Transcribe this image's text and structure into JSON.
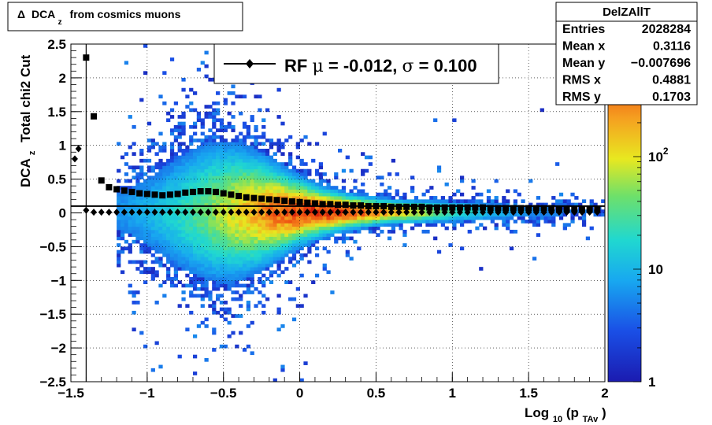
{
  "chart_data": {
    "type": "heatmap",
    "title_box": {
      "symbol": "Δ",
      "main": "DCA",
      "sub": "z",
      "rest": "from cosmics muons"
    },
    "xlabel": {
      "main": "Log",
      "sub1": "10",
      "mid": "(p",
      "sub2": "TAv",
      "end": ")"
    },
    "ylabel": {
      "main": "DCA",
      "sub": "z",
      "rest": "Total chi2 Cut"
    },
    "xlim": [
      -1.5,
      2.0
    ],
    "ylim": [
      -2.5,
      2.5
    ],
    "x_ticks": [
      -1.5,
      -1,
      -0.5,
      0,
      0.5,
      1,
      1.5,
      2
    ],
    "x_tick_labels": [
      "−1.5",
      "−1",
      "−0.5",
      "0",
      "0.5",
      "1",
      "1.5",
      "2"
    ],
    "y_ticks": [
      -2.5,
      -2,
      -1.5,
      -1,
      -0.5,
      0,
      0.5,
      1,
      1.5,
      2,
      2.5
    ],
    "y_tick_labels": [
      "−2.5",
      "−2",
      "−1.5",
      "−1",
      "−0.5",
      "0",
      "0.5",
      "1",
      "1.5",
      "2",
      "2.5"
    ],
    "grid": true,
    "colorbar": {
      "scale": "log",
      "range": [
        1,
        1000
      ],
      "labels": [
        {
          "value": 1,
          "base": "1",
          "exp": ""
        },
        {
          "value": 10,
          "base": "10",
          "exp": ""
        },
        {
          "value": 100,
          "base": "10",
          "exp": "2"
        }
      ]
    },
    "stats": {
      "name": "DelZAllT",
      "rows": [
        {
          "label": "Entries",
          "value": "2028284"
        },
        {
          "label": "Mean x",
          "value": "0.3116"
        },
        {
          "label": "Mean y",
          "value": "−0.007696"
        },
        {
          "label": "RMS x",
          "value": "0.4881"
        },
        {
          "label": "RMS y",
          "value": "0.1703"
        }
      ]
    },
    "legend": {
      "placement": "top-center",
      "label_prefix": "RF ",
      "mu_symbol": "μ",
      "mu_text": " = -0.012, ",
      "sigma_symbol": "σ",
      "sigma_text": " =   0.100"
    },
    "fit_line": {
      "y": 0.1
    },
    "series": [
      {
        "name": "RF",
        "marker": "diamond",
        "x": [
          -1.45,
          -1.4,
          -1.35,
          -1.3,
          -1.25,
          -1.2,
          -1.15,
          -1.1,
          -1.05,
          -1.0,
          -0.95,
          -0.9,
          -0.85,
          -0.8,
          -0.75,
          -0.7,
          -0.65,
          -0.6,
          -0.55,
          -0.5,
          -0.45,
          -0.4,
          -0.35,
          -0.3,
          -0.25,
          -0.2,
          -0.15,
          -0.1,
          -0.05,
          0.0,
          0.05,
          0.1,
          0.15,
          0.2,
          0.25,
          0.3,
          0.35,
          0.4,
          0.45,
          0.5,
          0.55,
          0.6,
          0.65,
          0.7,
          0.75,
          0.8,
          0.85,
          0.9,
          0.95,
          1.0,
          1.05,
          1.1,
          1.15,
          1.2,
          1.25,
          1.3,
          1.35,
          1.4,
          1.45,
          1.5,
          1.55,
          1.6,
          1.65,
          1.7,
          1.75,
          1.8,
          1.85,
          1.9,
          1.95
        ],
        "y": [
          0.95,
          0.04,
          0.01,
          0.01,
          0.01,
          0.01,
          0.01,
          0.01,
          0.01,
          0.01,
          0.01,
          0.01,
          0.01,
          0.01,
          0.01,
          0.01,
          0.01,
          0.01,
          0.01,
          0.01,
          0.01,
          0.01,
          0.01,
          0.01,
          0.01,
          0.01,
          0.01,
          0.01,
          0.01,
          0.01,
          0.01,
          0.01,
          0.01,
          0.01,
          0.01,
          0.01,
          0.01,
          0.01,
          0.01,
          0.01,
          0.01,
          0.01,
          0.01,
          0.01,
          0.01,
          0.01,
          0.01,
          0.01,
          0.01,
          0.01,
          0.01,
          0.01,
          0.01,
          0.01,
          0.01,
          0.01,
          0.01,
          0.01,
          0.01,
          0.01,
          0.01,
          0.01,
          0.01,
          0.01,
          0.01,
          0.01,
          0.01,
          0.01,
          0.01
        ]
      },
      {
        "marker": "square",
        "x": [
          -1.4,
          -1.35,
          -1.3,
          -1.25,
          -1.2,
          -1.15,
          -1.1,
          -1.05,
          -1.0,
          -0.95,
          -0.9,
          -0.85,
          -0.8,
          -0.75,
          -0.7,
          -0.65,
          -0.6,
          -0.55,
          -0.5,
          -0.45,
          -0.4,
          -0.35,
          -0.3,
          -0.25,
          -0.2,
          -0.15,
          -0.1,
          -0.05,
          0.0,
          0.05,
          0.1,
          0.15,
          0.2,
          0.25,
          0.3,
          0.35,
          0.4,
          0.45,
          0.5,
          0.55,
          0.6,
          0.65,
          0.7,
          0.75,
          0.8,
          0.85,
          0.9,
          0.95,
          1.0,
          1.05,
          1.1,
          1.15,
          1.2,
          1.25,
          1.3,
          1.35,
          1.4,
          1.45,
          1.5,
          1.55,
          1.6,
          1.65,
          1.7,
          1.75,
          1.8,
          1.85,
          1.9,
          1.95
        ],
        "y": [
          2.3,
          1.43,
          0.48,
          0.38,
          0.35,
          0.33,
          0.31,
          0.29,
          0.28,
          0.27,
          0.26,
          0.27,
          0.28,
          0.3,
          0.31,
          0.32,
          0.32,
          0.31,
          0.29,
          0.27,
          0.25,
          0.23,
          0.22,
          0.21,
          0.2,
          0.19,
          0.18,
          0.17,
          0.16,
          0.15,
          0.14,
          0.13,
          0.13,
          0.12,
          0.12,
          0.11,
          0.11,
          0.1,
          0.1,
          0.1,
          0.09,
          0.09,
          0.09,
          0.09,
          0.09,
          0.08,
          0.08,
          0.08,
          0.08,
          0.08,
          0.08,
          0.08,
          0.08,
          0.07,
          0.07,
          0.07,
          0.07,
          0.07,
          0.07,
          0.07,
          0.07,
          0.07,
          0.06,
          0.06,
          0.06,
          0.06,
          0.06,
          0.06
        ]
      },
      {
        "marker": "circle",
        "x": [
          -1.5
        ],
        "y": [
          0.8
        ]
      }
    ]
  }
}
